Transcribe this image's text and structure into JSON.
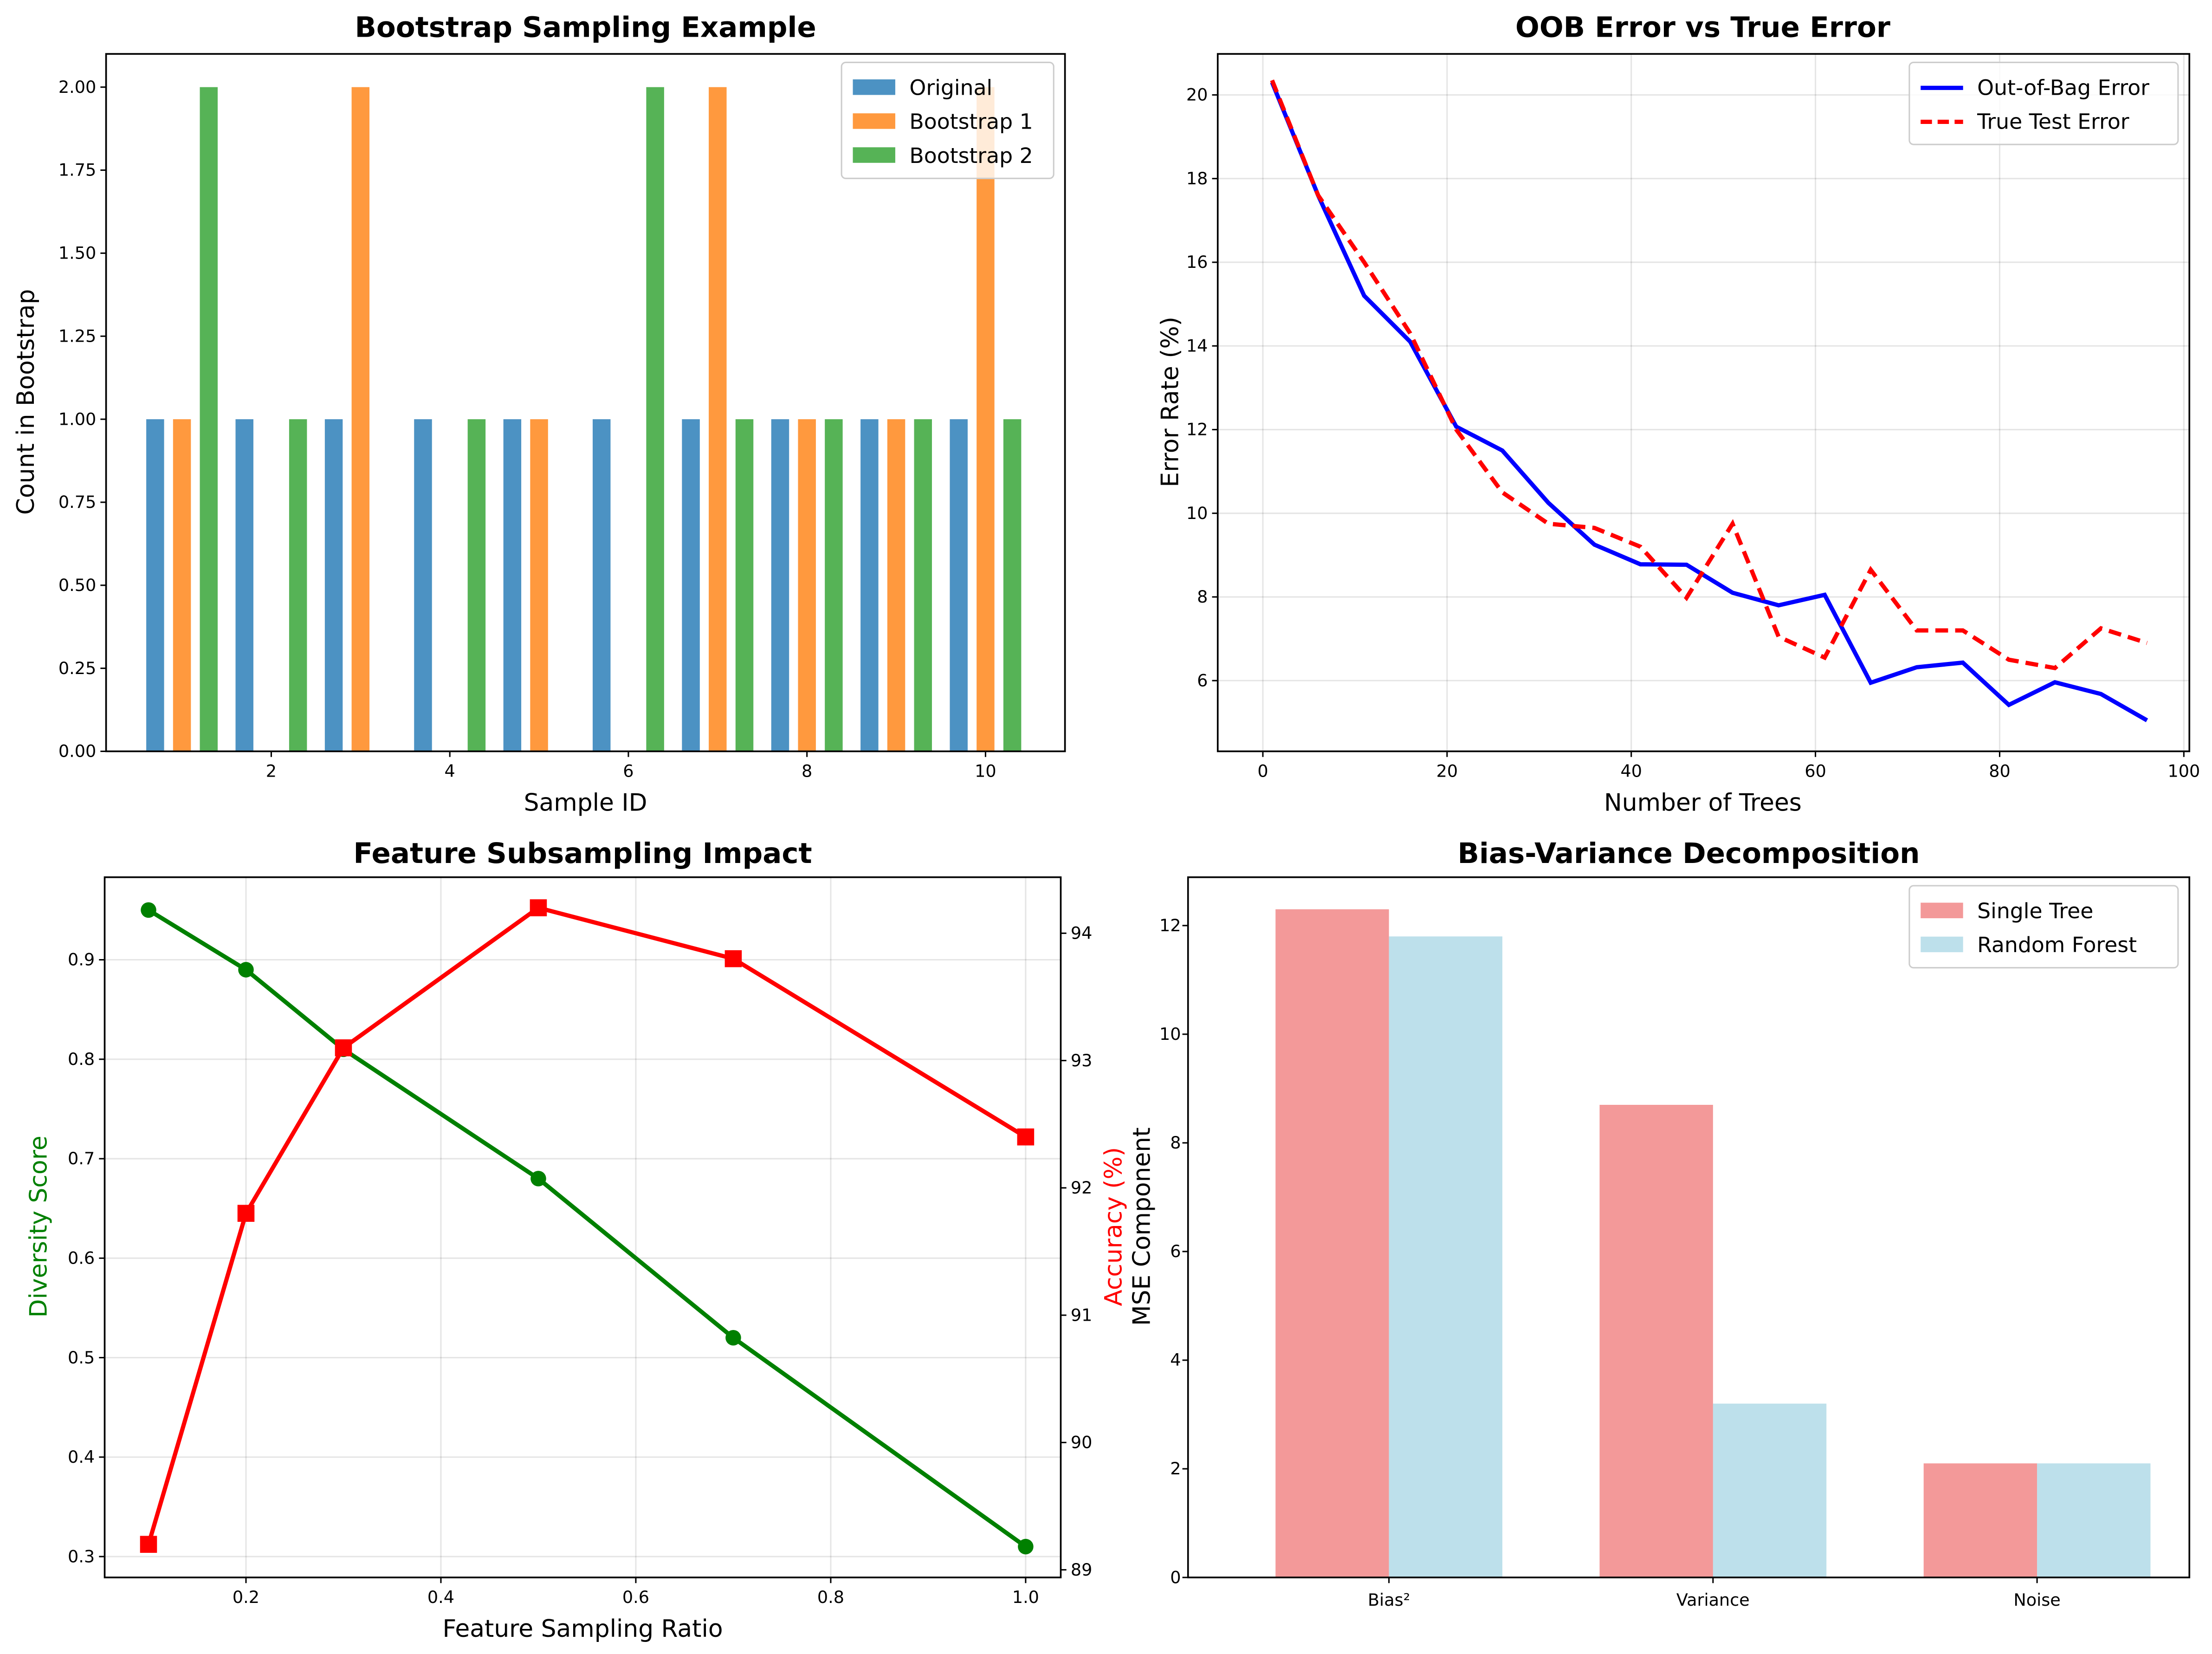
{
  "chart_data": [
    {
      "type": "bar",
      "title": "Bootstrap Sampling Example",
      "xlabel": "Sample ID",
      "ylabel": "Count in Bootstrap",
      "x": [
        1,
        2,
        3,
        4,
        5,
        6,
        7,
        8,
        9,
        10
      ],
      "xlim": [
        0.15,
        10.89
      ],
      "ylim": [
        0,
        2.1
      ],
      "xticks": [
        2,
        4,
        6,
        8,
        10
      ],
      "yticks": [
        0,
        0.25,
        0.5,
        0.75,
        1.0,
        1.25,
        1.5,
        1.75,
        2.0
      ],
      "ytick_labels": [
        "0.00",
        "0.25",
        "0.50",
        "0.75",
        "1.00",
        "1.25",
        "1.50",
        "1.75",
        "2.00"
      ],
      "grid": false,
      "legend": "top-right",
      "series": [
        {
          "name": "Original",
          "values": [
            1,
            1,
            1,
            1,
            1,
            1,
            1,
            1,
            1,
            1
          ],
          "color": "#1f77b4",
          "offset": -0.3
        },
        {
          "name": "Bootstrap 1",
          "values": [
            1,
            0,
            2,
            0,
            1,
            0,
            2,
            1,
            1,
            2
          ],
          "color": "#ff7f0e",
          "offset": 0.0
        },
        {
          "name": "Bootstrap 2",
          "values": [
            2,
            1,
            0,
            1,
            0,
            2,
            1,
            1,
            1,
            1
          ],
          "color": "#2ca02c",
          "offset": 0.3
        }
      ]
    },
    {
      "type": "line",
      "title": "OOB Error vs True Error",
      "xlabel": "Number of Trees",
      "ylabel": "Error Rate (%)",
      "x": [
        1,
        6,
        11,
        16,
        21,
        26,
        31,
        36,
        41,
        46,
        51,
        56,
        61,
        66,
        71,
        76,
        81,
        86,
        91,
        96
      ],
      "xlim": [
        -4.9,
        100.6
      ],
      "ylim": [
        4.31,
        20.98
      ],
      "xticks": [
        0,
        20,
        40,
        60,
        80,
        100
      ],
      "yticks": [
        6,
        8,
        10,
        12,
        14,
        16,
        18,
        20
      ],
      "grid": true,
      "legend": "top-right",
      "series": [
        {
          "name": "Out-of-Bag Error",
          "color": "#0000ff",
          "dash": false,
          "values": [
            20.3,
            17.6,
            15.2,
            14.1,
            12.07,
            11.5,
            10.25,
            9.25,
            8.78,
            8.77,
            8.1,
            7.8,
            8.05,
            5.95,
            6.32,
            6.43,
            5.42,
            5.96,
            5.68,
            5.05
          ]
        },
        {
          "name": "True Test Error",
          "color": "#ff0000",
          "dash": true,
          "values": [
            20.35,
            17.6,
            16.0,
            14.3,
            12.0,
            10.5,
            9.75,
            9.65,
            9.2,
            7.98,
            9.75,
            7.05,
            6.55,
            8.65,
            7.2,
            7.2,
            6.5,
            6.3,
            7.25,
            6.9
          ]
        }
      ]
    },
    {
      "type": "line",
      "title": "Feature Subsampling Impact",
      "xlabel": "Feature Sampling Ratio",
      "ylabel": "Diversity Score",
      "ylabel_right": "Accuracy (%)",
      "x": [
        0.1,
        0.2,
        0.3,
        0.5,
        0.7,
        1.0
      ],
      "xlim": [
        0.055,
        1.036
      ],
      "ylim": [
        0.279,
        0.983
      ],
      "ylim_right": [
        88.94,
        94.44
      ],
      "xticks": [
        0.2,
        0.4,
        0.6,
        0.8,
        1.0
      ],
      "xtick_labels": [
        "0.2",
        "0.4",
        "0.6",
        "0.8",
        "1.0"
      ],
      "yticks": [
        0.3,
        0.4,
        0.5,
        0.6,
        0.7,
        0.8,
        0.9
      ],
      "yticks_right": [
        89,
        90,
        91,
        92,
        93,
        94
      ],
      "grid": true,
      "series": [
        {
          "axis": "left",
          "color": "#008000",
          "marker": "circle",
          "values": [
            0.95,
            0.89,
            0.81,
            0.68,
            0.52,
            0.31
          ]
        },
        {
          "axis": "right",
          "color": "#ff0000",
          "marker": "square",
          "values": [
            89.2,
            91.8,
            93.1,
            94.2,
            93.8,
            92.4
          ]
        }
      ]
    },
    {
      "type": "bar",
      "title": "Bias-Variance Decomposition",
      "xlabel": "",
      "ylabel": "MSE Component",
      "categories": [
        "Bias²",
        "Variance",
        "Noise"
      ],
      "xlim": [
        -0.62,
        2.47
      ],
      "ylim": [
        0,
        12.89
      ],
      "yticks": [
        0,
        2,
        4,
        6,
        8,
        10,
        12
      ],
      "grid": false,
      "legend": "top-right",
      "series": [
        {
          "name": "Single Tree",
          "values": [
            12.3,
            8.7,
            2.1
          ],
          "color": "#f08080"
        },
        {
          "name": "Random Forest",
          "values": [
            11.8,
            3.2,
            2.1
          ],
          "color": "#add8e6"
        }
      ]
    }
  ]
}
